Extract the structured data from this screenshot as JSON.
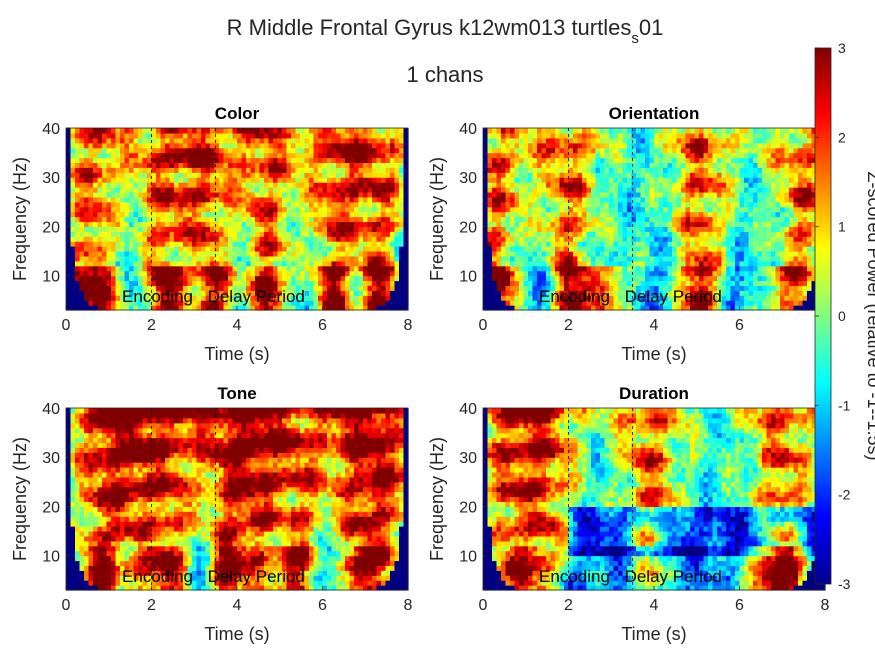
{
  "figure": {
    "title_line1_main": "R Middle Frontal Gyrus k12wm013 turtles",
    "title_line1_sub": "s",
    "title_line1_tail": "01",
    "title_line2": "1 chans"
  },
  "colorbar": {
    "label": "Z-scored Power (relative to -1--1.5s)",
    "ticks": [
      "3",
      "2",
      "1",
      "0",
      "-1",
      "-2",
      "-3"
    ],
    "range": [
      -3,
      3
    ]
  },
  "chart_data": [
    {
      "type": "heatmap",
      "title": "Color",
      "xlabel": "Time (s)",
      "ylabel": "Frequency (Hz)",
      "xlim": [
        0,
        8
      ],
      "ylim": [
        3,
        40
      ],
      "xticks": [
        "0",
        "2",
        "4",
        "6",
        "8"
      ],
      "yticks": [
        "10",
        "20",
        "30",
        "40"
      ],
      "markers": [
        2,
        3.5
      ],
      "annotations": [
        "Encoding",
        "Delay Period"
      ],
      "seed": 11,
      "bursts": [
        0.6,
        2.3,
        3.3,
        4.7,
        6.3,
        7.3
      ],
      "band_times": [
        0.2,
        1.0,
        2.4,
        3.6,
        4.8,
        6.2,
        7.4
      ]
    },
    {
      "type": "heatmap",
      "title": "Orientation",
      "xlabel": "Time (s)",
      "ylabel": "Frequency (Hz)",
      "xlim": [
        0,
        8
      ],
      "ylim": [
        3,
        40
      ],
      "xticks": [
        "0",
        "2",
        "4",
        "6",
        "8"
      ],
      "yticks": [
        "10",
        "20",
        "30",
        "40"
      ],
      "markers": [
        2,
        3.5
      ],
      "annotations": [
        "Encoding",
        "Delay Period"
      ],
      "seed": 23,
      "bursts": [
        0.3,
        2.0,
        5.1,
        7.5
      ],
      "band_times": [
        0.4,
        2.2,
        3.0,
        5.0,
        7.0
      ]
    },
    {
      "type": "heatmap",
      "title": "Tone",
      "xlabel": "Time (s)",
      "ylabel": "Frequency (Hz)",
      "xlim": [
        0,
        8
      ],
      "ylim": [
        3,
        40
      ],
      "xticks": [
        "0",
        "2",
        "4",
        "6",
        "8"
      ],
      "yticks": [
        "10",
        "20",
        "30",
        "40"
      ],
      "markers": [
        2,
        3.5
      ],
      "annotations": [
        "Encoding",
        "Delay Period"
      ],
      "seed": 37,
      "bursts": [
        0.8,
        1.6,
        2.5,
        3.8,
        4.5,
        5.5,
        6.8,
        7.5
      ],
      "band_times": [
        0.8,
        2.2,
        3.8,
        5.2,
        7.0
      ]
    },
    {
      "type": "heatmap",
      "title": "Duration",
      "xlabel": "Time (s)",
      "ylabel": "Frequency (Hz)",
      "xlim": [
        0,
        8
      ],
      "ylim": [
        3,
        40
      ],
      "xticks": [
        "0",
        "2",
        "4",
        "6",
        "8"
      ],
      "yticks": [
        "10",
        "20",
        "30",
        "40"
      ],
      "markers": [
        2,
        3.5
      ],
      "annotations": [
        "Encoding",
        "Delay Period"
      ],
      "seed": 51,
      "bursts": [
        0.6,
        1.5,
        3.9,
        7.0
      ],
      "band_times": [
        1.0,
        6.6,
        7.2
      ]
    }
  ]
}
